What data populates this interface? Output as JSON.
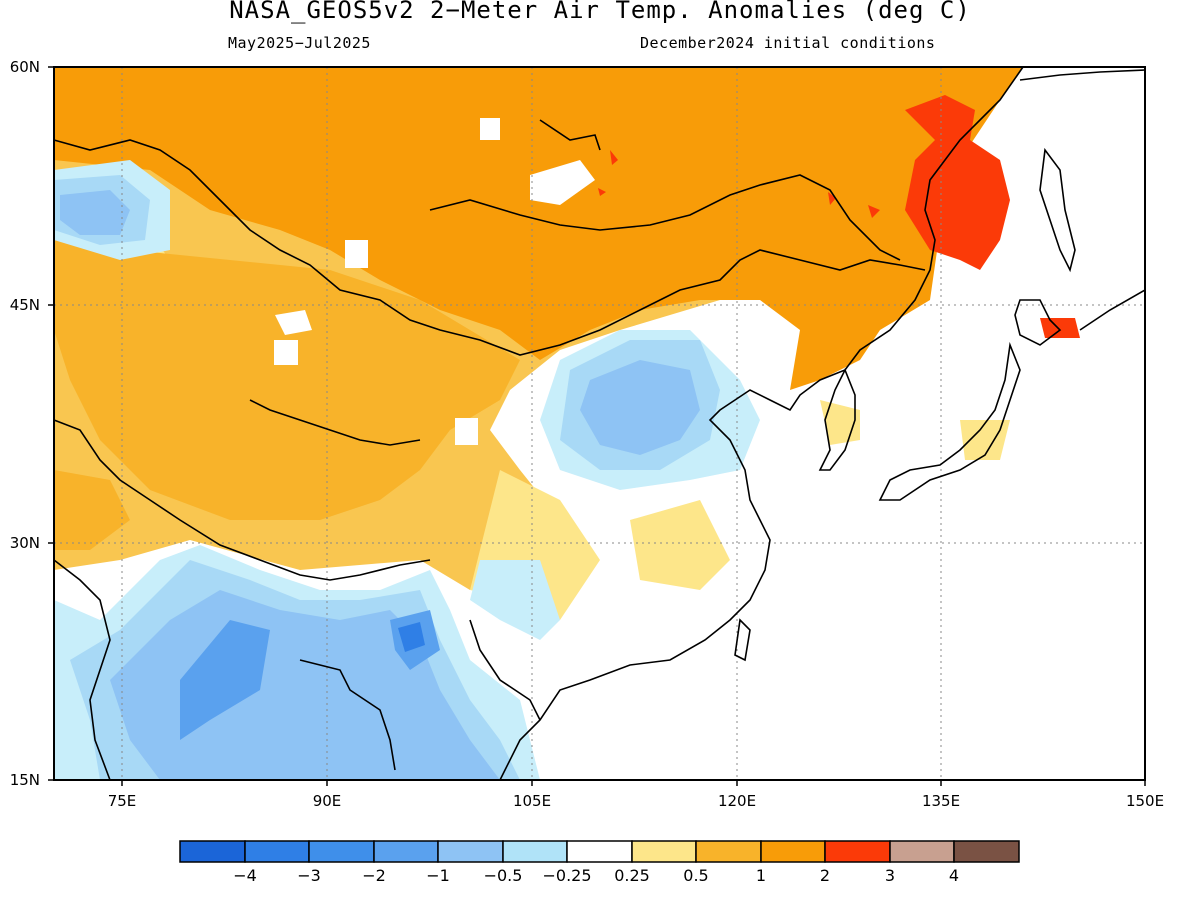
{
  "title": "NASA_GEOS5v2 2−Meter Air Temp. Anomalies (deg C)",
  "period": "May2025−Jul2025",
  "init": "December2024 initial conditions",
  "map": {
    "lon_range": [
      70,
      150
    ],
    "lat_range": [
      15,
      60
    ],
    "lat_ticks": [
      "15N",
      "30N",
      "45N",
      "60N"
    ],
    "lon_ticks": [
      "75E",
      "90E",
      "105E",
      "120E",
      "135E",
      "150E"
    ],
    "grid": true
  },
  "colors": {
    "n4": "#1b65d8",
    "n3": "#2f7fe6",
    "n2": "#5aa1ee",
    "n1": "#8ec3f4",
    "n05": "#a8d9f6",
    "n025": "#c8eefa",
    "zero": "#ffffff",
    "p025": "#fde68a",
    "p05": "#f9c650",
    "p1": "#f8b32a",
    "p2": "#f89c08",
    "p3": "#fb3a08",
    "p4": "#c8a090",
    "p5": "#7a5244",
    "coast": "#000000"
  },
  "colorbar": {
    "labels": [
      "−4",
      "−3",
      "−2",
      "−1",
      "−0.5",
      "−0.25",
      "0.25",
      "0.5",
      "1",
      "2",
      "3",
      "4"
    ]
  }
}
